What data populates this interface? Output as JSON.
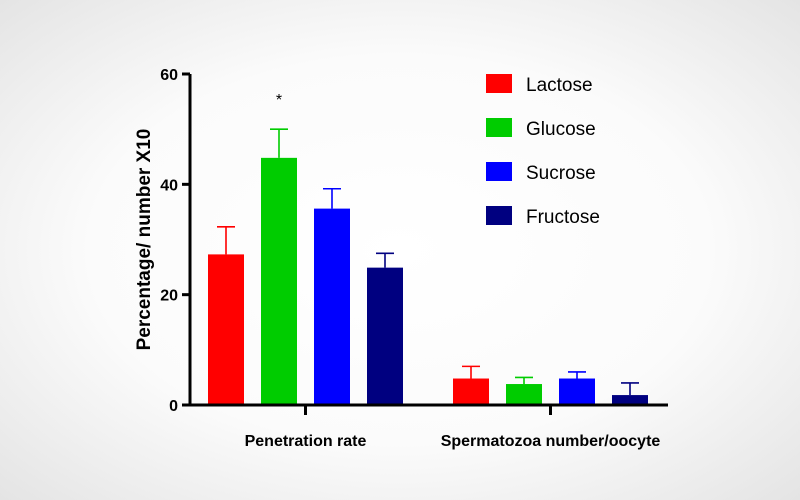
{
  "chart_data": {
    "type": "bar",
    "title": "",
    "xlabel": "",
    "ylabel": "Percentage/ number X10",
    "ylim": [
      0,
      60
    ],
    "yticks": [
      "0",
      "20",
      "40",
      "60"
    ],
    "ytick_values": [
      0,
      20,
      40,
      60
    ],
    "categories": [
      "Penetration rate",
      "Spermatozoa number/oocyte"
    ],
    "series": [
      {
        "name": "Lactose",
        "color": "#ff0000",
        "values": [
          27.3,
          4.8
        ],
        "errors": [
          5.0,
          2.2
        ]
      },
      {
        "name": "Glucose",
        "color": "#00cc00",
        "values": [
          44.8,
          3.8
        ],
        "errors": [
          5.2,
          1.2
        ]
      },
      {
        "name": "Sucrose",
        "color": "#0000ff",
        "values": [
          35.6,
          4.8
        ],
        "errors": [
          3.6,
          1.2
        ]
      },
      {
        "name": "Fructose",
        "color": "#000080",
        "values": [
          24.9,
          1.8
        ],
        "errors": [
          2.6,
          2.2
        ]
      }
    ],
    "annotations": [
      {
        "text": "*",
        "category_index": 0,
        "series_index": 1
      }
    ],
    "legend": "top-right",
    "grid": false
  }
}
